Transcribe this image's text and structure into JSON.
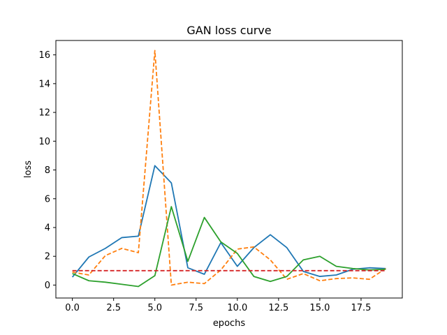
{
  "chart_data": {
    "type": "line",
    "title": "GAN loss curve",
    "xlabel": "epochs",
    "ylabel": "loss",
    "xlim": [
      -1.0,
      20.0
    ],
    "ylim": [
      -0.9,
      17.0
    ],
    "xticks": [
      0.0,
      2.5,
      5.0,
      7.5,
      10.0,
      12.5,
      15.0,
      17.5
    ],
    "xtick_labels": [
      "0.0",
      "2.5",
      "5.0",
      "7.5",
      "10.0",
      "12.5",
      "15.0",
      "17.5"
    ],
    "yticks": [
      0,
      2,
      4,
      6,
      8,
      10,
      12,
      14,
      16
    ],
    "ytick_labels": [
      "0",
      "2",
      "4",
      "6",
      "8",
      "10",
      "12",
      "14",
      "16"
    ],
    "grid": false,
    "x": [
      0,
      1,
      2,
      3,
      4,
      5,
      6,
      7,
      8,
      9,
      10,
      11,
      12,
      13,
      14,
      15,
      16,
      17,
      18,
      19
    ],
    "series": [
      {
        "color": "#1f77b4",
        "style": "solid",
        "values": [
          0.55,
          1.95,
          2.55,
          3.3,
          3.4,
          8.3,
          7.1,
          1.2,
          0.75,
          2.95,
          1.3,
          2.6,
          3.5,
          2.6,
          0.95,
          0.6,
          0.7,
          1.1,
          1.2,
          1.15
        ]
      },
      {
        "color": "#ff7f0e",
        "style": "dashed",
        "values": [
          0.9,
          0.7,
          2.05,
          2.55,
          2.25,
          16.3,
          0.0,
          0.2,
          0.1,
          1.05,
          2.5,
          2.65,
          1.75,
          0.4,
          0.8,
          0.3,
          0.45,
          0.5,
          0.4,
          1.15
        ]
      },
      {
        "color": "#2ca02c",
        "style": "solid",
        "values": [
          0.8,
          0.3,
          0.2,
          0.05,
          -0.1,
          0.65,
          5.45,
          1.65,
          4.7,
          3.0,
          2.2,
          0.6,
          0.25,
          0.6,
          1.75,
          2.0,
          1.3,
          1.15,
          1.05,
          1.1
        ]
      },
      {
        "color": "#d62728",
        "style": "dashed",
        "values": [
          1.0,
          1.0,
          1.0,
          1.0,
          1.0,
          1.0,
          1.0,
          1.0,
          1.0,
          1.0,
          1.0,
          1.0,
          1.0,
          1.0,
          1.0,
          1.0,
          1.0,
          1.0,
          1.0,
          1.0
        ]
      }
    ]
  }
}
